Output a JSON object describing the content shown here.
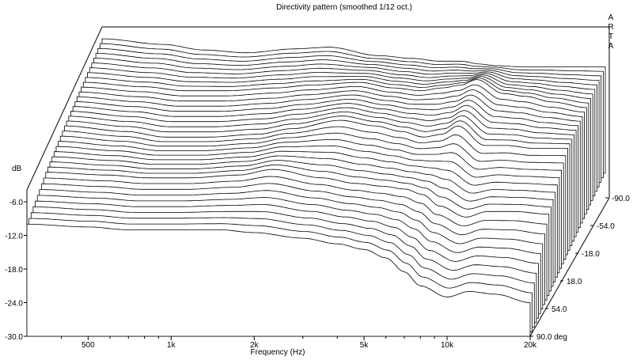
{
  "chart_data": {
    "type": "waterfall",
    "title": "Directivity pattern (smoothed 1/12 oct.)",
    "watermark": [
      "A",
      "R",
      "T",
      "A"
    ],
    "xlabel": "Frequency (Hz)",
    "x_scale": "log",
    "xlim": [
      300,
      20000
    ],
    "x_ticks": [
      {
        "value": 500,
        "label": "500"
      },
      {
        "value": 1000,
        "label": "1k"
      },
      {
        "value": 2000,
        "label": "2k"
      },
      {
        "value": 5000,
        "label": "5k"
      },
      {
        "value": 10000,
        "label": "10k"
      },
      {
        "value": 20000,
        "label": "20k"
      }
    ],
    "x_minor_ticks": [
      400,
      600,
      700,
      800,
      900,
      3000,
      4000,
      6000,
      7000,
      8000,
      9000
    ],
    "ylabel": "dB",
    "ylim": [
      -30,
      6
    ],
    "y_ticks": [
      {
        "value": -6,
        "label": "-6.0"
      },
      {
        "value": -12,
        "label": "-12.0"
      },
      {
        "value": -18,
        "label": "-18.0"
      },
      {
        "value": -24,
        "label": "-24.0"
      },
      {
        "value": -30,
        "label": "-30.0"
      }
    ],
    "z_label": "deg",
    "zlim": [
      -90,
      90
    ],
    "z_ticks": [
      {
        "value": -90,
        "label": "-90.0"
      },
      {
        "value": -54,
        "label": "-54.0"
      },
      {
        "value": -18,
        "label": "-18.0"
      },
      {
        "value": 18,
        "label": "18.0"
      },
      {
        "value": 54,
        "label": "54.0"
      },
      {
        "value": 90,
        "label": "90.0 deg"
      }
    ],
    "angle_step": 5,
    "control_freqs": [
      300,
      500,
      700,
      1000,
      1500,
      2000,
      3000,
      4000,
      5000,
      6000,
      7000,
      8000,
      10000,
      12000,
      15000,
      20000
    ],
    "series": [
      {
        "name": "-90",
        "angle": -90,
        "values": [
          -6.0,
          -7.0,
          -8.0,
          -8.5,
          -7.8,
          -7.5,
          -9.0,
          -9.5,
          -10.0,
          -10.0,
          -10.5,
          -10.8,
          -11.0,
          -11.0,
          -11.0,
          -11.0
        ]
      },
      {
        "name": "-45",
        "angle": -45,
        "values": [
          -6.5,
          -7.3,
          -8.0,
          -8.0,
          -7.5,
          -7.0,
          -6.5,
          -7.5,
          -8.0,
          -7.5,
          -7.0,
          -6.0,
          -8.5,
          -9.0,
          -10.0,
          -11.0
        ]
      },
      {
        "name": "0",
        "angle": 0,
        "values": [
          -7.0,
          -8.0,
          -9.0,
          -9.0,
          -8.5,
          -7.5,
          -6.0,
          -7.0,
          -8.0,
          -9.0,
          -8.5,
          -7.0,
          -10.5,
          -10.5,
          -11.0,
          -11.0
        ]
      },
      {
        "name": "45",
        "angle": 45,
        "values": [
          -8.0,
          -8.5,
          -9.0,
          -9.0,
          -8.5,
          -7.5,
          -9.0,
          -10.0,
          -10.5,
          -11.0,
          -12.0,
          -14.0,
          -16.0,
          -15.0,
          -15.0,
          -15.5
        ]
      },
      {
        "name": "90",
        "angle": 90,
        "values": [
          -10.0,
          -10.5,
          -11.0,
          -11.0,
          -11.0,
          -11.5,
          -12.5,
          -13.5,
          -14.5,
          -16.0,
          -18.5,
          -21.0,
          -23.0,
          -22.0,
          -22.5,
          -24.0
        ]
      }
    ]
  }
}
